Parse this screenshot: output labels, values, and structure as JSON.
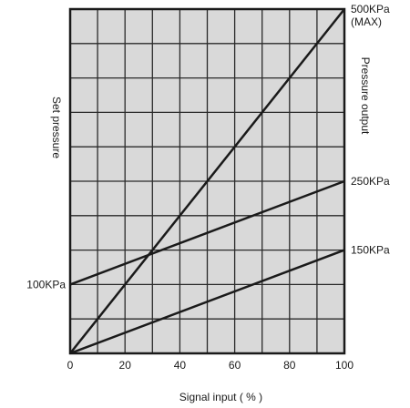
{
  "chart_data": {
    "type": "line",
    "xlabel": "Signal input ( % )",
    "ylabel_left": "Set pressure",
    "ylabel_right": "Pressure output",
    "xlim": [
      0,
      100
    ],
    "ylim": [
      0,
      500
    ],
    "x_ticks": [
      "0",
      "20",
      "40",
      "60",
      "80",
      "100"
    ],
    "grid": true,
    "grid_color": "#d9d9d9",
    "line_color": "#1a1a1a",
    "left_annotations": [
      {
        "value": 100,
        "label": "100KPa"
      }
    ],
    "right_annotations": [
      {
        "value": 500,
        "label": "500KPa",
        "sublabel": "(MAX)"
      },
      {
        "value": 250,
        "label": "250KPa"
      },
      {
        "value": 150,
        "label": "150KPa"
      }
    ],
    "series": [
      {
        "x": [
          0,
          100
        ],
        "y": [
          0,
          500
        ]
      },
      {
        "x": [
          0,
          100
        ],
        "y": [
          100,
          250
        ]
      },
      {
        "x": [
          0,
          100
        ],
        "y": [
          0,
          150
        ]
      }
    ]
  }
}
